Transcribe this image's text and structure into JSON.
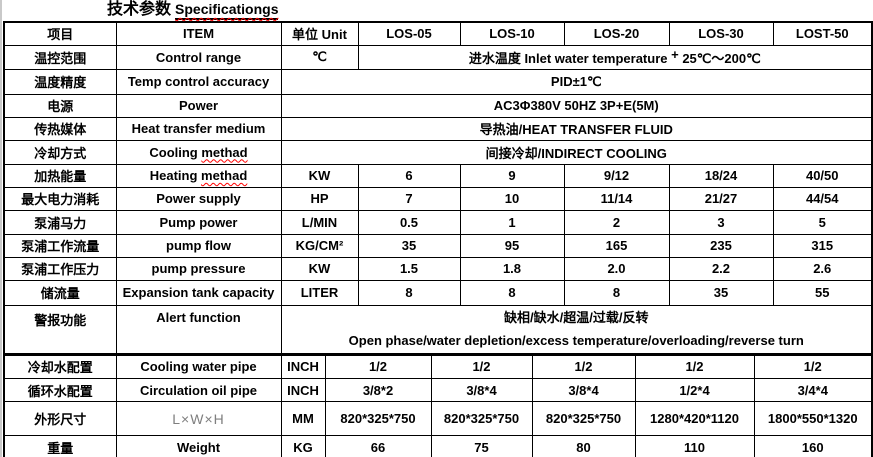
{
  "title": {
    "zh": "技术参数",
    "en": "Specificationgs"
  },
  "accent_colors": {
    "squiggle": "#ff0000",
    "dim_text": "#7f7f7f",
    "border": "#000000"
  },
  "spec_table": {
    "upper_rows": [
      {
        "cells": [
          {
            "text": "项目",
            "name": "header-item-zh"
          },
          {
            "text": "ITEM",
            "name": "header-item-en"
          },
          {
            "text": "单位 Unit",
            "name": "header-unit"
          },
          {
            "text": "LOS-05",
            "name": "header-model-los-05"
          },
          {
            "text": "LOS-10",
            "name": "header-model-los-10"
          },
          {
            "text": "LOS-20",
            "name": "header-model-los-20"
          },
          {
            "text": "LOS-30",
            "name": "header-model-los-30"
          },
          {
            "text": "LOST-50",
            "name": "header-model-lost-50"
          }
        ]
      },
      {
        "cells": [
          {
            "text": "温控范围"
          },
          {
            "text": "Control range"
          },
          {
            "text": "℃"
          },
          {
            "span": 5,
            "name": "merged-value-cell",
            "parts": [
              {
                "t": "进水温度 Inlet water temperature "
              },
              {
                "t": "+",
                "cls": "sup"
              },
              {
                "t": " 25℃～200℃"
              }
            ]
          }
        ]
      },
      {
        "cells": [
          {
            "text": "温度精度"
          },
          {
            "text": "Temp control accuracy"
          },
          {
            "span": 6,
            "text": "PID±1℃"
          }
        ]
      },
      {
        "cells": [
          {
            "text": "电源"
          },
          {
            "text": "Power"
          },
          {
            "span": 6,
            "text": "AC3Φ380V 50HZ 3P+E(5M)"
          }
        ]
      },
      {
        "cells": [
          {
            "text": "传热媒体"
          },
          {
            "text": "Heat transfer medium"
          },
          {
            "span": 6,
            "text": "导热油/HEAT TRANSFER FLUID"
          }
        ]
      },
      {
        "cells": [
          {
            "text": "冷却方式"
          },
          {
            "parts": [
              {
                "t": "Cooling "
              },
              {
                "t": "methad",
                "cls": "wavy"
              }
            ]
          },
          {
            "span": 6,
            "text": "间接冷却/INDIRECT COOLING"
          }
        ]
      },
      {
        "cells": [
          {
            "text": "加热能量"
          },
          {
            "parts": [
              {
                "t": "Heating "
              },
              {
                "t": "methad",
                "cls": "wavy"
              }
            ]
          },
          {
            "text": "KW"
          },
          {
            "text": "6"
          },
          {
            "text": "9"
          },
          {
            "text": "9/12"
          },
          {
            "text": "18/24"
          },
          {
            "text": "40/50"
          }
        ]
      },
      {
        "cells": [
          {
            "text": "最大电力消耗"
          },
          {
            "text": "Power supply"
          },
          {
            "text": "HP"
          },
          {
            "text": "7"
          },
          {
            "text": "10"
          },
          {
            "text": "11/14"
          },
          {
            "text": "21/27"
          },
          {
            "text": "44/54"
          }
        ]
      },
      {
        "cells": [
          {
            "text": "泵浦马力"
          },
          {
            "text": "Pump power"
          },
          {
            "text": "L/MIN"
          },
          {
            "text": "0.5"
          },
          {
            "text": "1"
          },
          {
            "text": "2"
          },
          {
            "text": "3"
          },
          {
            "text": "5"
          }
        ]
      },
      {
        "cells": [
          {
            "text": "泵浦工作流量"
          },
          {
            "text": "pump flow"
          },
          {
            "text": "KG/CM²"
          },
          {
            "text": "35"
          },
          {
            "text": "95"
          },
          {
            "text": "165"
          },
          {
            "text": "235"
          },
          {
            "text": "315"
          }
        ]
      },
      {
        "cells": [
          {
            "text": "泵浦工作压力"
          },
          {
            "text": "pump pressure"
          },
          {
            "text": "KW"
          },
          {
            "text": "1.5"
          },
          {
            "text": "1.8"
          },
          {
            "text": "2.0"
          },
          {
            "text": "2.2"
          },
          {
            "text": "2.6"
          }
        ]
      },
      {
        "cells": [
          {
            "text": "储流量"
          },
          {
            "text": "Expansion tank capacity"
          },
          {
            "text": "LITER"
          },
          {
            "text": "8"
          },
          {
            "text": "8"
          },
          {
            "text": "8"
          },
          {
            "text": "35"
          },
          {
            "text": "55"
          }
        ]
      },
      {
        "cells": [
          {
            "text": "警报功能",
            "cls": "vtop"
          },
          {
            "text": "Alert function",
            "cls": "vtop"
          },
          {
            "span": 6,
            "name": "alert-merged-cell",
            "lines": [
              "缺相/缺水/超温/过载/反转",
              "Open phase/water depletion/excess temperature/overloading/reverse turn"
            ]
          }
        ]
      }
    ],
    "lower_rows": [
      {
        "cells": [
          {
            "text": "冷却水配置"
          },
          {
            "text": "Cooling water pipe"
          },
          {
            "text": "INCH"
          },
          {
            "text": "1/2"
          },
          {
            "text": "1/2"
          },
          {
            "text": "1/2"
          },
          {
            "text": "1/2"
          },
          {
            "text": "1/2"
          }
        ]
      },
      {
        "cells": [
          {
            "text": "循环水配置"
          },
          {
            "text": "Circulation oil pipe"
          },
          {
            "text": "INCH"
          },
          {
            "text": "3/8*2"
          },
          {
            "text": "3/8*4"
          },
          {
            "text": "3/8*4"
          },
          {
            "text": "1/2*4"
          },
          {
            "text": "3/4*4"
          }
        ]
      },
      {
        "cells": [
          {
            "text": "外形尺寸"
          },
          {
            "text": "L×W×H",
            "cls": "dim"
          },
          {
            "text": "MM"
          },
          {
            "text": "820*325*750"
          },
          {
            "text": "820*325*750"
          },
          {
            "text": "820*325*750"
          },
          {
            "text": "1280*420*1120"
          },
          {
            "text": "1800*550*1320"
          }
        ]
      },
      {
        "cells": [
          {
            "text": "重量"
          },
          {
            "text": "Weight"
          },
          {
            "text": "KG"
          },
          {
            "text": "66"
          },
          {
            "text": "75"
          },
          {
            "text": "80"
          },
          {
            "text": "110"
          },
          {
            "text": "160"
          }
        ]
      }
    ]
  }
}
